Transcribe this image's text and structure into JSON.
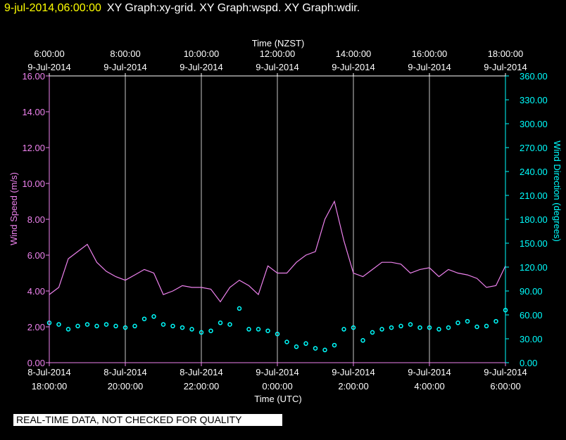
{
  "header": {
    "timestamp": "9-jul-2014,06:00:00",
    "graphs": "XY Graph:xy-grid.  XY Graph:wspd.  XY Graph:wdir."
  },
  "disclaimer": "REAL-TIME DATA, NOT CHECKED FOR QUALITY",
  "colors": {
    "wspd": "#ee82ee",
    "wdir": "#00ffff",
    "header": "#ffff00",
    "grid": "#c8c8c8"
  },
  "chart_data": {
    "type": "line",
    "x_top_title": "Time (NZST)",
    "x_bottom_title": "Time (UTC)",
    "x_top_ticks": [
      {
        "time": "6:00:00",
        "date": "9-Jul-2014"
      },
      {
        "time": "8:00:00",
        "date": "9-Jul-2014"
      },
      {
        "time": "10:00:00",
        "date": "9-Jul-2014"
      },
      {
        "time": "12:00:00",
        "date": "9-Jul-2014"
      },
      {
        "time": "14:00:00",
        "date": "9-Jul-2014"
      },
      {
        "time": "16:00:00",
        "date": "9-Jul-2014"
      },
      {
        "time": "18:00:00",
        "date": "9-Jul-2014"
      }
    ],
    "x_bottom_ticks": [
      {
        "date": "8-Jul-2014",
        "time": "18:00:00"
      },
      {
        "date": "8-Jul-2014",
        "time": "20:00:00"
      },
      {
        "date": "8-Jul-2014",
        "time": "22:00:00"
      },
      {
        "date": "9-Jul-2014",
        "time": "0:00:00"
      },
      {
        "date": "9-Jul-2014",
        "time": "2:00:00"
      },
      {
        "date": "9-Jul-2014",
        "time": "4:00:00"
      },
      {
        "date": "9-Jul-2014",
        "time": "6:00:00"
      }
    ],
    "xlim_hours_utc": [
      18,
      30
    ],
    "y_left_label": "Wind Speed (m/s)",
    "y_left_ticks": [
      "0.00",
      "2.00",
      "4.00",
      "6.00",
      "8.00",
      "10.00",
      "12.00",
      "14.00",
      "16.00"
    ],
    "y_left_lim": [
      0,
      16
    ],
    "y_right_label": "Wind Direction (degrees)",
    "y_right_ticks": [
      "0.00",
      "30.00",
      "60.00",
      "90.00",
      "120.00",
      "150.00",
      "180.00",
      "210.00",
      "240.00",
      "270.00",
      "300.00",
      "330.00",
      "360.00"
    ],
    "y_right_lim": [
      0,
      360
    ],
    "grid": "vertical only",
    "series": [
      {
        "key": "wspd",
        "axis": "left",
        "style": "line",
        "x_hours_utc": [
          18.0,
          18.25,
          18.5,
          18.75,
          19.0,
          19.25,
          19.5,
          19.75,
          20.0,
          20.25,
          20.5,
          20.75,
          21.0,
          21.25,
          21.5,
          21.75,
          22.0,
          22.25,
          22.5,
          22.75,
          23.0,
          23.25,
          23.5,
          23.75,
          24.0,
          24.25,
          24.5,
          24.75,
          25.0,
          25.25,
          25.5,
          25.75,
          26.0,
          26.25,
          26.5,
          26.75,
          27.0,
          27.25,
          27.5,
          27.75,
          28.0,
          28.25,
          28.5,
          28.75,
          29.0,
          29.25,
          29.5,
          29.75,
          30.0
        ],
        "values": [
          3.8,
          4.2,
          5.8,
          6.2,
          6.6,
          5.6,
          5.1,
          4.8,
          4.6,
          4.9,
          5.2,
          5.0,
          3.8,
          4.0,
          4.3,
          4.2,
          4.2,
          4.1,
          3.4,
          4.2,
          4.6,
          4.3,
          3.8,
          5.4,
          5.0,
          5.0,
          5.6,
          6.0,
          6.2,
          8.0,
          9.0,
          6.8,
          5.0,
          4.8,
          5.2,
          5.6,
          5.6,
          5.5,
          5.0,
          5.2,
          5.3,
          4.8,
          5.2,
          5.0,
          4.9,
          4.7,
          4.2,
          4.3,
          5.4
        ]
      },
      {
        "key": "wdir",
        "axis": "right",
        "style": "points",
        "x_hours_utc": [
          18.0,
          18.25,
          18.5,
          18.75,
          19.0,
          19.25,
          19.5,
          19.75,
          20.0,
          20.25,
          20.5,
          20.75,
          21.0,
          21.25,
          21.5,
          21.75,
          22.0,
          22.25,
          22.5,
          22.75,
          23.0,
          23.25,
          23.5,
          23.75,
          24.0,
          24.25,
          24.5,
          24.75,
          25.0,
          25.25,
          25.5,
          25.75,
          26.0,
          26.25,
          26.5,
          26.75,
          27.0,
          27.25,
          27.5,
          27.75,
          28.0,
          28.25,
          28.5,
          28.75,
          29.0,
          29.25,
          29.5,
          29.75,
          30.0
        ],
        "values": [
          50,
          48,
          42,
          46,
          48,
          46,
          48,
          46,
          44,
          46,
          55,
          58,
          48,
          46,
          44,
          42,
          38,
          40,
          50,
          48,
          68,
          42,
          42,
          40,
          36,
          26,
          20,
          24,
          18,
          16,
          22,
          42,
          44,
          28,
          38,
          42,
          44,
          46,
          48,
          44,
          44,
          42,
          44,
          50,
          52,
          45,
          46,
          52,
          66
        ]
      }
    ]
  }
}
